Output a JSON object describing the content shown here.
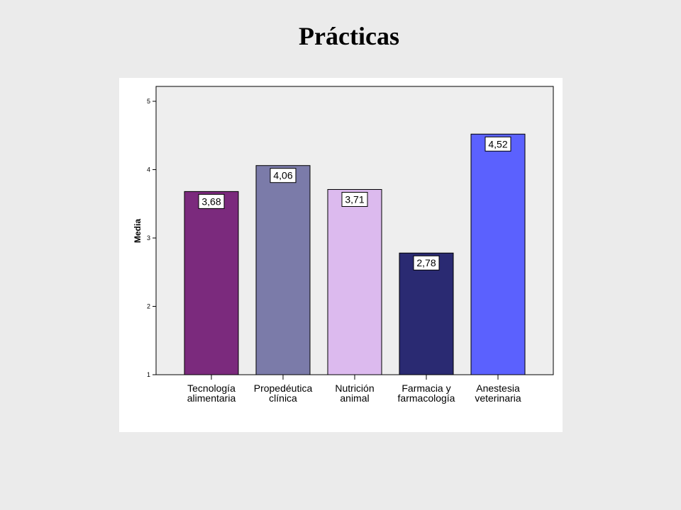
{
  "slide": {
    "title": "Prácticas"
  },
  "chart_data": {
    "type": "bar",
    "title": "",
    "xlabel": "",
    "ylabel": "Media",
    "ylim": [
      1,
      5
    ],
    "yticks": [
      "1",
      "2",
      "3",
      "4",
      "5"
    ],
    "grid": false,
    "legend": "none",
    "categories": [
      [
        "Tecnología",
        "alimentaria"
      ],
      [
        "Propedéutica",
        "clínica"
      ],
      [
        "Nutrición",
        "animal"
      ],
      [
        "Farmacia y",
        "farmacología"
      ],
      [
        "Anestesia",
        "veterinaria"
      ]
    ],
    "values": [
      3.68,
      4.06,
      3.71,
      2.78,
      4.52
    ],
    "data_labels": [
      "3,68",
      "4,06",
      "3,71",
      "2,78",
      "4,52"
    ],
    "colors": [
      "#7b2a7d",
      "#7b7ba9",
      "#dcbaee",
      "#2a2a72",
      "#5b61fe"
    ],
    "plot_background": "#eeeeee"
  }
}
